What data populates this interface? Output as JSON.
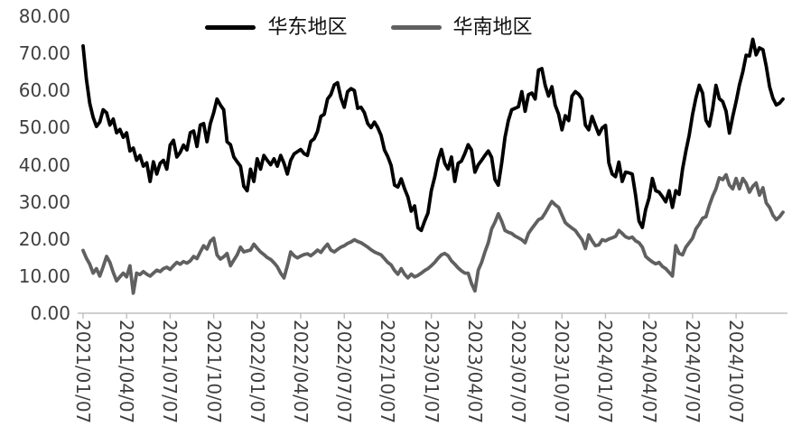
{
  "chart_data": {
    "type": "line",
    "title": "",
    "legend_position": "top-center",
    "grid": "off",
    "background_color": "#ffffff",
    "axis_color": "#bfbfbf",
    "tick_label_color": "#3f3f3f",
    "ylim": [
      0,
      80
    ],
    "y_tick_labels": [
      "80.00",
      "70.00",
      "60.00",
      "50.00",
      "40.00",
      "30.00",
      "20.00",
      "10.00",
      "0.00"
    ],
    "y_tick_values": [
      80,
      70,
      60,
      50,
      40,
      30,
      20,
      10,
      0
    ],
    "x_tick_labels": [
      "2021/01/07",
      "2021/04/07",
      "2021/07/07",
      "2021/10/07",
      "2022/01/07",
      "2022/04/07",
      "2022/07/07",
      "2022/10/07",
      "2023/01/07",
      "2023/04/07",
      "2023/07/07",
      "2023/10/07",
      "2024/01/07",
      "2024/04/07",
      "2024/07/07",
      "2024/10/07"
    ],
    "x_tick_interval_points": 13,
    "x_unit": "week",
    "series": [
      {
        "name": "华东地区",
        "color": "#000000",
        "values": [
          72,
          63,
          56.5,
          52.8,
          50.3,
          51.5,
          54.8,
          54,
          50.7,
          52.3,
          48.6,
          49.5,
          47.4,
          48.6,
          43.7,
          44.5,
          41.2,
          42.5,
          39.6,
          40.5,
          35.5,
          40.8,
          37.5,
          40.4,
          41.2,
          38.8,
          45.3,
          46.6,
          42.1,
          43.3,
          45.3,
          44,
          48.6,
          49.1,
          44.9,
          50.7,
          51.1,
          46.2,
          51.1,
          54,
          57.7,
          56.1,
          54.8,
          46.2,
          45.4,
          42.1,
          40.8,
          39.6,
          34.2,
          33,
          38.8,
          35.5,
          41.6,
          38.8,
          42.5,
          41.2,
          40,
          41.6,
          39.6,
          42.5,
          40.4,
          37.5,
          41.2,
          42.9,
          43.5,
          44.1,
          43,
          42.5,
          46.3,
          47,
          49,
          53,
          53.6,
          57.7,
          58.9,
          61.5,
          62.1,
          58,
          55.5,
          59.7,
          60.5,
          60,
          55.2,
          55.5,
          54,
          51.1,
          50,
          51.5,
          50,
          47.9,
          44,
          42.2,
          39.8,
          34.5,
          34,
          36.2,
          33.5,
          31.3,
          27.5,
          28.9,
          23,
          22.3,
          24.8,
          27,
          33,
          36.7,
          41.2,
          44.1,
          40.4,
          38.8,
          42.1,
          35.5,
          40.4,
          41,
          43,
          45.4,
          44,
          38,
          40,
          41.2,
          42.5,
          43.7,
          42,
          36,
          34.5,
          40.4,
          47.4,
          51.9,
          54.8,
          55.2,
          55.6,
          59.7,
          54.4,
          58.9,
          59.3,
          57.7,
          65.5,
          65.9,
          61.4,
          58.5,
          61,
          56,
          53.6,
          49.4,
          53.2,
          51.9,
          58.5,
          59.7,
          59,
          57.7,
          50.7,
          49.4,
          53,
          50.6,
          48.2,
          49.9,
          50.6,
          40.5,
          37.5,
          36.8,
          40.7,
          35.5,
          38,
          37.8,
          37.5,
          31.8,
          24.8,
          23.1,
          28,
          31,
          36.3,
          33,
          32.6,
          31.4,
          30,
          33,
          28.5,
          33,
          32,
          38.8,
          43.7,
          48,
          53.6,
          58,
          61.4,
          59.3,
          52,
          50.4,
          55,
          61.4,
          57.8,
          57,
          54.4,
          48.5,
          53,
          57,
          61.5,
          65,
          69.5,
          69.3,
          73.8,
          69.6,
          71.5,
          71,
          66.5,
          61,
          57.9,
          56.1,
          56.6,
          57.7
        ]
      },
      {
        "name": "华南地区",
        "color": "#606060",
        "values": [
          16.9,
          14.8,
          13.2,
          10.8,
          12,
          10,
          12.5,
          15.3,
          13.7,
          11,
          8.7,
          9.8,
          10.8,
          9.8,
          12.8,
          5.4,
          10.8,
          10.4,
          11.2,
          10.5,
          10,
          10.8,
          11.6,
          11.2,
          12,
          12.4,
          11.8,
          12.8,
          13.7,
          13.2,
          13.9,
          13.5,
          14.1,
          15.3,
          14.7,
          16.5,
          18.2,
          17.3,
          19.4,
          20.2,
          15.7,
          14.6,
          15.2,
          16.1,
          12.8,
          14.3,
          15.7,
          17.8,
          16.5,
          16.8,
          17,
          18.6,
          17.5,
          16.5,
          15.8,
          15,
          14.5,
          13.6,
          12.5,
          10.8,
          9.5,
          12.8,
          16.5,
          15.5,
          14.9,
          15.4,
          15.8,
          16,
          15.5,
          16.2,
          17,
          16.4,
          17.6,
          18.6,
          17,
          16.5,
          17.2,
          17.8,
          18.2,
          18.8,
          19.2,
          19.8,
          19.3,
          19,
          18.4,
          17.8,
          17.1,
          16.5,
          16.1,
          15.7,
          14.7,
          13.7,
          13,
          11.5,
          10.5,
          12,
          10.5,
          9.5,
          10.5,
          9.8,
          10.2,
          10.8,
          11.5,
          12,
          12.8,
          13.7,
          14.8,
          15.7,
          16.1,
          15.5,
          14.1,
          13.2,
          12.2,
          11.4,
          10.8,
          10.8,
          8,
          6,
          11.6,
          13.7,
          16.5,
          19,
          22.7,
          24.5,
          26.8,
          24.8,
          22.3,
          21.8,
          21.5,
          20.8,
          20.3,
          19.8,
          19,
          21.5,
          22.8,
          24,
          25.2,
          25.6,
          27,
          28.6,
          30.1,
          29.2,
          28.5,
          26.4,
          24.4,
          23.6,
          22.9,
          22.3,
          21,
          19.8,
          17.4,
          21.1,
          19.5,
          18.2,
          18.4,
          19.8,
          19.5,
          20,
          20.3,
          20.7,
          22.3,
          21.5,
          20.6,
          20.2,
          20.5,
          19.5,
          19,
          17.8,
          15.3,
          14.5,
          13.8,
          13.3,
          13.7,
          12.6,
          12,
          11,
          10,
          18.2,
          16.1,
          15.7,
          17.8,
          19,
          20.2,
          22.7,
          24,
          25.6,
          26,
          29,
          31.5,
          33.5,
          36.5,
          36,
          37.3,
          34.5,
          33.5,
          36.3,
          33.5,
          36.3,
          35,
          32.6,
          34.2,
          35.1,
          31.8,
          33.8,
          29.7,
          28.5,
          26.4,
          25.2,
          26,
          27.2
        ]
      }
    ]
  }
}
